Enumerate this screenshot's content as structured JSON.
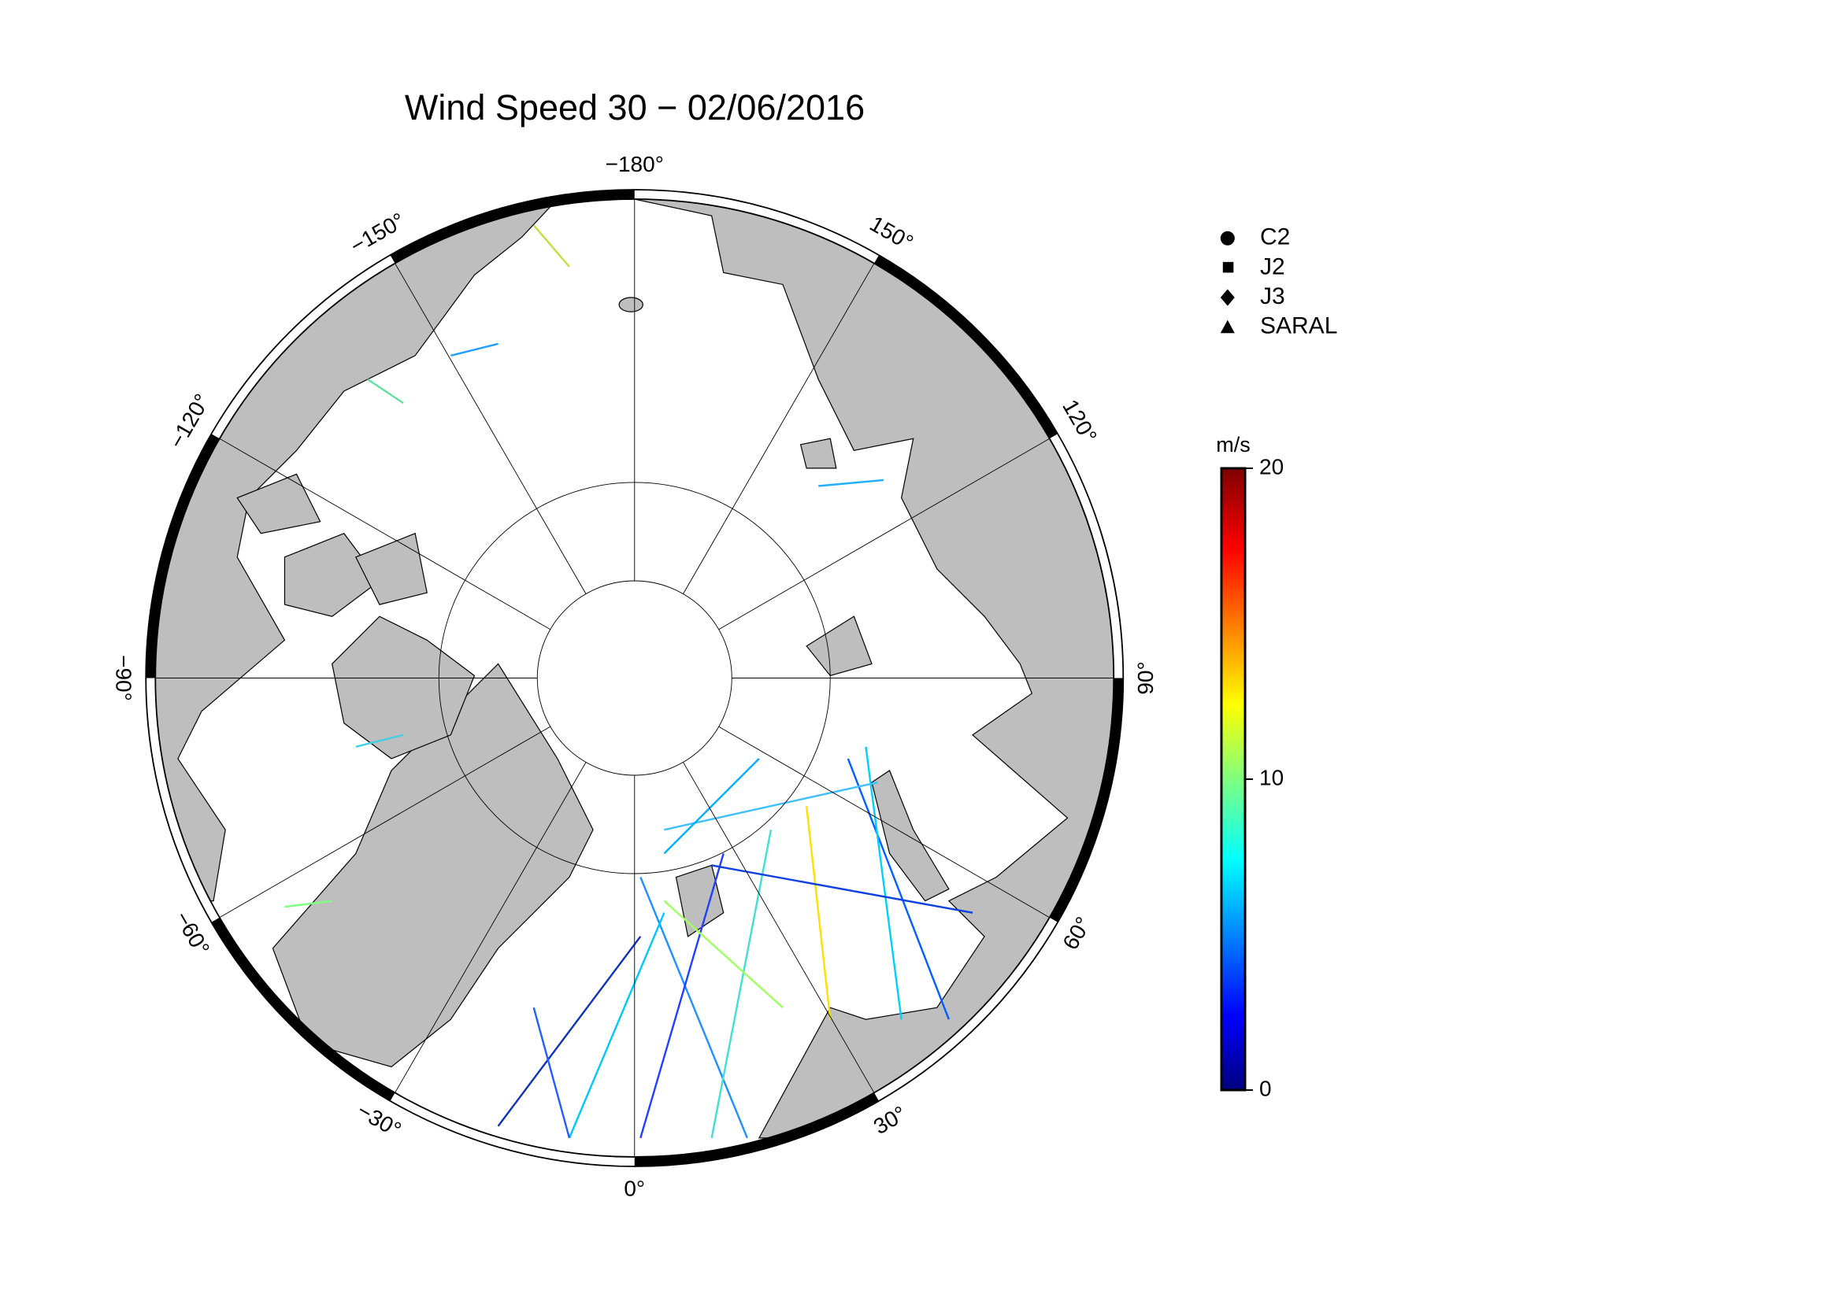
{
  "title": "Wind Speed 30 − 02/06/2016",
  "longitude_labels": [
    {
      "value": -180,
      "label": "−180°"
    },
    {
      "value": -150,
      "label": "−150°"
    },
    {
      "value": -120,
      "label": "−120°"
    },
    {
      "value": -90,
      "label": "−90°"
    },
    {
      "value": -60,
      "label": "−60°"
    },
    {
      "value": -30,
      "label": "−30°"
    },
    {
      "value": 0,
      "label": "0°"
    },
    {
      "value": 30,
      "label": "30°"
    },
    {
      "value": 60,
      "label": "60°"
    },
    {
      "value": 90,
      "label": "90°"
    },
    {
      "value": 120,
      "label": "120°"
    },
    {
      "value": 150,
      "label": "150°"
    }
  ],
  "legend": [
    "C2",
    "J2",
    "J3",
    "SARAL"
  ],
  "colorbar": {
    "label": "m/s",
    "range": [
      0,
      20
    ],
    "ticks": [
      0,
      10,
      20
    ]
  }
}
